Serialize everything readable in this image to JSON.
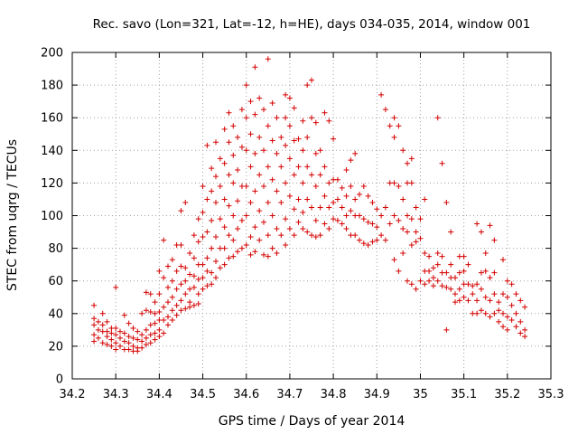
{
  "chart_data": {
    "type": "scatter",
    "title": "Rec. savo (Lon=321, Lat=-12, h=HE), days 034-035, 2014, window 001",
    "xlabel": "GPS time / Days of year 2014",
    "ylabel": "STEC from uqrg / TECUs",
    "xlim": [
      34.2,
      35.3
    ],
    "ylim": [
      0,
      200
    ],
    "xticks": [
      "34.2",
      "34.3",
      "34.4",
      "34.5",
      "34.6",
      "34.7",
      "34.8",
      "34.9",
      "35",
      "35.1",
      "35.2",
      "35.3"
    ],
    "yticks": [
      "0",
      "20",
      "40",
      "60",
      "80",
      "100",
      "120",
      "140",
      "160",
      "180",
      "200"
    ],
    "grid": true,
    "marker": "+",
    "color": "#d40000",
    "points": [
      [
        34.25,
        45
      ],
      [
        34.25,
        37
      ],
      [
        34.25,
        33
      ],
      [
        34.25,
        27
      ],
      [
        34.25,
        23
      ],
      [
        34.26,
        35
      ],
      [
        34.26,
        30
      ],
      [
        34.26,
        25
      ],
      [
        34.27,
        40
      ],
      [
        34.27,
        33
      ],
      [
        34.27,
        29
      ],
      [
        34.27,
        22
      ],
      [
        34.28,
        35
      ],
      [
        34.28,
        29
      ],
      [
        34.28,
        26
      ],
      [
        34.28,
        21
      ],
      [
        34.29,
        31
      ],
      [
        34.29,
        28
      ],
      [
        34.29,
        24
      ],
      [
        34.29,
        20
      ],
      [
        34.3,
        56
      ],
      [
        34.3,
        31
      ],
      [
        34.3,
        27
      ],
      [
        34.3,
        22
      ],
      [
        34.3,
        18
      ],
      [
        34.31,
        29
      ],
      [
        34.31,
        25
      ],
      [
        34.31,
        20
      ],
      [
        34.32,
        39
      ],
      [
        34.32,
        28
      ],
      [
        34.32,
        23
      ],
      [
        34.32,
        18
      ],
      [
        34.33,
        34
      ],
      [
        34.33,
        26
      ],
      [
        34.33,
        22
      ],
      [
        34.33,
        18
      ],
      [
        34.34,
        31
      ],
      [
        34.34,
        25
      ],
      [
        34.34,
        20
      ],
      [
        34.34,
        17
      ],
      [
        34.35,
        29
      ],
      [
        34.35,
        24
      ],
      [
        34.35,
        19
      ],
      [
        34.35,
        17
      ],
      [
        34.36,
        40
      ],
      [
        34.36,
        27
      ],
      [
        34.36,
        23
      ],
      [
        34.36,
        19
      ],
      [
        34.37,
        53
      ],
      [
        34.37,
        42
      ],
      [
        34.37,
        30
      ],
      [
        34.37,
        25
      ],
      [
        34.37,
        21
      ],
      [
        34.38,
        52
      ],
      [
        34.38,
        41
      ],
      [
        34.38,
        33
      ],
      [
        34.38,
        27
      ],
      [
        34.38,
        22
      ],
      [
        34.39,
        47
      ],
      [
        34.39,
        40
      ],
      [
        34.39,
        34
      ],
      [
        34.39,
        28
      ],
      [
        34.39,
        24
      ],
      [
        34.4,
        66
      ],
      [
        34.4,
        52
      ],
      [
        34.4,
        41
      ],
      [
        34.4,
        36
      ],
      [
        34.4,
        30
      ],
      [
        34.4,
        26
      ],
      [
        34.41,
        85
      ],
      [
        34.41,
        62
      ],
      [
        34.41,
        44
      ],
      [
        34.41,
        36
      ],
      [
        34.41,
        28
      ],
      [
        34.42,
        69
      ],
      [
        34.42,
        56
      ],
      [
        34.42,
        47
      ],
      [
        34.42,
        38
      ],
      [
        34.42,
        33
      ],
      [
        34.43,
        73
      ],
      [
        34.43,
        60
      ],
      [
        34.43,
        50
      ],
      [
        34.43,
        42
      ],
      [
        34.43,
        36
      ],
      [
        34.44,
        82
      ],
      [
        34.44,
        66
      ],
      [
        34.44,
        55
      ],
      [
        34.44,
        45
      ],
      [
        34.44,
        39
      ],
      [
        34.45,
        103
      ],
      [
        34.45,
        82
      ],
      [
        34.45,
        69
      ],
      [
        34.45,
        58
      ],
      [
        34.45,
        48
      ],
      [
        34.45,
        42
      ],
      [
        34.46,
        108
      ],
      [
        34.46,
        68
      ],
      [
        34.46,
        60
      ],
      [
        34.46,
        52
      ],
      [
        34.46,
        43
      ],
      [
        34.47,
        77
      ],
      [
        34.47,
        64
      ],
      [
        34.47,
        55
      ],
      [
        34.47,
        47
      ],
      [
        34.47,
        44
      ],
      [
        34.48,
        88
      ],
      [
        34.48,
        74
      ],
      [
        34.48,
        63
      ],
      [
        34.48,
        56
      ],
      [
        34.48,
        45
      ],
      [
        34.49,
        98
      ],
      [
        34.49,
        84
      ],
      [
        34.49,
        70
      ],
      [
        34.49,
        61
      ],
      [
        34.49,
        52
      ],
      [
        34.49,
        46
      ],
      [
        34.5,
        118
      ],
      [
        34.5,
        102
      ],
      [
        34.5,
        87
      ],
      [
        34.5,
        70
      ],
      [
        34.5,
        62
      ],
      [
        34.5,
        55
      ],
      [
        34.51,
        143
      ],
      [
        34.51,
        110
      ],
      [
        34.51,
        90
      ],
      [
        34.51,
        74
      ],
      [
        34.51,
        66
      ],
      [
        34.51,
        57
      ],
      [
        34.52,
        129
      ],
      [
        34.52,
        115
      ],
      [
        34.52,
        97
      ],
      [
        34.52,
        80
      ],
      [
        34.52,
        65
      ],
      [
        34.52,
        58
      ],
      [
        34.53,
        145
      ],
      [
        34.53,
        124
      ],
      [
        34.53,
        108
      ],
      [
        34.53,
        87
      ],
      [
        34.53,
        72
      ],
      [
        34.53,
        62
      ],
      [
        34.54,
        135
      ],
      [
        34.54,
        118
      ],
      [
        34.54,
        98
      ],
      [
        34.54,
        80
      ],
      [
        34.54,
        68
      ],
      [
        34.55,
        153
      ],
      [
        34.55,
        132
      ],
      [
        34.55,
        110
      ],
      [
        34.55,
        93
      ],
      [
        34.55,
        80
      ],
      [
        34.55,
        70
      ],
      [
        34.56,
        163
      ],
      [
        34.56,
        145
      ],
      [
        34.56,
        125
      ],
      [
        34.56,
        106
      ],
      [
        34.56,
        88
      ],
      [
        34.56,
        74
      ],
      [
        34.57,
        155
      ],
      [
        34.57,
        137
      ],
      [
        34.57,
        120
      ],
      [
        34.57,
        100
      ],
      [
        34.57,
        85
      ],
      [
        34.57,
        75
      ],
      [
        34.58,
        148
      ],
      [
        34.58,
        128
      ],
      [
        34.58,
        109
      ],
      [
        34.58,
        92
      ],
      [
        34.58,
        78
      ],
      [
        34.59,
        165
      ],
      [
        34.59,
        142
      ],
      [
        34.59,
        118
      ],
      [
        34.59,
        97
      ],
      [
        34.59,
        80
      ],
      [
        34.6,
        180
      ],
      [
        34.6,
        160
      ],
      [
        34.6,
        140
      ],
      [
        34.6,
        118
      ],
      [
        34.6,
        100
      ],
      [
        34.6,
        82
      ],
      [
        34.61,
        170
      ],
      [
        34.61,
        150
      ],
      [
        34.61,
        130
      ],
      [
        34.61,
        108
      ],
      [
        34.61,
        87
      ],
      [
        34.61,
        76
      ],
      [
        34.62,
        191
      ],
      [
        34.62,
        162
      ],
      [
        34.62,
        138
      ],
      [
        34.62,
        115
      ],
      [
        34.62,
        93
      ],
      [
        34.62,
        78
      ],
      [
        34.63,
        172
      ],
      [
        34.63,
        148
      ],
      [
        34.63,
        125
      ],
      [
        34.63,
        103
      ],
      [
        34.63,
        85
      ],
      [
        34.64,
        165
      ],
      [
        34.64,
        140
      ],
      [
        34.64,
        118
      ],
      [
        34.64,
        96
      ],
      [
        34.64,
        76
      ],
      [
        34.65,
        196
      ],
      [
        34.65,
        155
      ],
      [
        34.65,
        130
      ],
      [
        34.65,
        108
      ],
      [
        34.65,
        88
      ],
      [
        34.65,
        75
      ],
      [
        34.66,
        169
      ],
      [
        34.66,
        146
      ],
      [
        34.66,
        122
      ],
      [
        34.66,
        100
      ],
      [
        34.66,
        80
      ],
      [
        34.67,
        160
      ],
      [
        34.67,
        138
      ],
      [
        34.67,
        115
      ],
      [
        34.67,
        92
      ],
      [
        34.67,
        77
      ],
      [
        34.68,
        148
      ],
      [
        34.68,
        130
      ],
      [
        34.68,
        108
      ],
      [
        34.68,
        88
      ],
      [
        34.69,
        174
      ],
      [
        34.69,
        160
      ],
      [
        34.69,
        143
      ],
      [
        34.69,
        120
      ],
      [
        34.69,
        98
      ],
      [
        34.69,
        82
      ],
      [
        34.7,
        172
      ],
      [
        34.7,
        155
      ],
      [
        34.7,
        135
      ],
      [
        34.7,
        112
      ],
      [
        34.7,
        92
      ],
      [
        34.71,
        166
      ],
      [
        34.71,
        146
      ],
      [
        34.71,
        125
      ],
      [
        34.71,
        104
      ],
      [
        34.71,
        88
      ],
      [
        34.72,
        147
      ],
      [
        34.72,
        130
      ],
      [
        34.72,
        110
      ],
      [
        34.72,
        96
      ],
      [
        34.73,
        158
      ],
      [
        34.73,
        140
      ],
      [
        34.73,
        120
      ],
      [
        34.73,
        102
      ],
      [
        34.73,
        92
      ],
      [
        34.74,
        180
      ],
      [
        34.74,
        148
      ],
      [
        34.74,
        130
      ],
      [
        34.74,
        110
      ],
      [
        34.74,
        90
      ],
      [
        34.75,
        183
      ],
      [
        34.75,
        160
      ],
      [
        34.75,
        125
      ],
      [
        34.75,
        105
      ],
      [
        34.75,
        88
      ],
      [
        34.76,
        157
      ],
      [
        34.76,
        138
      ],
      [
        34.76,
        118
      ],
      [
        34.76,
        97
      ],
      [
        34.76,
        87
      ],
      [
        34.77,
        140
      ],
      [
        34.77,
        125
      ],
      [
        34.77,
        105
      ],
      [
        34.77,
        88
      ],
      [
        34.78,
        163
      ],
      [
        34.78,
        130
      ],
      [
        34.78,
        112
      ],
      [
        34.78,
        95
      ],
      [
        34.79,
        158
      ],
      [
        34.79,
        120
      ],
      [
        34.79,
        105
      ],
      [
        34.79,
        92
      ],
      [
        34.8,
        147
      ],
      [
        34.8,
        122
      ],
      [
        34.8,
        108
      ],
      [
        34.8,
        98
      ],
      [
        34.81,
        122
      ],
      [
        34.81,
        110
      ],
      [
        34.81,
        97
      ],
      [
        34.82,
        117
      ],
      [
        34.82,
        105
      ],
      [
        34.82,
        95
      ],
      [
        34.83,
        128
      ],
      [
        34.83,
        112
      ],
      [
        34.83,
        100
      ],
      [
        34.83,
        92
      ],
      [
        34.84,
        134
      ],
      [
        34.84,
        118
      ],
      [
        34.84,
        103
      ],
      [
        34.84,
        88
      ],
      [
        34.85,
        138
      ],
      [
        34.85,
        110
      ],
      [
        34.85,
        100
      ],
      [
        34.85,
        88
      ],
      [
        34.86,
        113
      ],
      [
        34.86,
        100
      ],
      [
        34.86,
        85
      ],
      [
        34.87,
        118
      ],
      [
        34.87,
        98
      ],
      [
        34.87,
        83
      ],
      [
        34.88,
        112
      ],
      [
        34.88,
        96
      ],
      [
        34.88,
        82
      ],
      [
        34.89,
        108
      ],
      [
        34.89,
        95
      ],
      [
        34.89,
        84
      ],
      [
        34.9,
        104
      ],
      [
        34.9,
        93
      ],
      [
        34.9,
        85
      ],
      [
        34.91,
        174
      ],
      [
        34.91,
        100
      ],
      [
        34.91,
        88
      ],
      [
        34.92,
        165
      ],
      [
        34.92,
        105
      ],
      [
        34.92,
        85
      ],
      [
        34.93,
        155
      ],
      [
        34.93,
        120
      ],
      [
        34.93,
        95
      ],
      [
        34.94,
        160
      ],
      [
        34.94,
        148
      ],
      [
        34.94,
        120
      ],
      [
        34.94,
        100
      ],
      [
        34.94,
        73
      ],
      [
        34.95,
        155
      ],
      [
        34.95,
        118
      ],
      [
        34.95,
        97
      ],
      [
        34.95,
        66
      ],
      [
        34.96,
        140
      ],
      [
        34.96,
        110
      ],
      [
        34.96,
        92
      ],
      [
        34.96,
        77
      ],
      [
        34.97,
        132
      ],
      [
        34.97,
        120
      ],
      [
        34.97,
        100
      ],
      [
        34.97,
        90
      ],
      [
        34.97,
        60
      ],
      [
        34.98,
        135
      ],
      [
        34.98,
        120
      ],
      [
        34.98,
        98
      ],
      [
        34.98,
        82
      ],
      [
        34.98,
        58
      ],
      [
        34.99,
        105
      ],
      [
        34.99,
        90
      ],
      [
        34.99,
        84
      ],
      [
        34.99,
        55
      ],
      [
        35,
        98
      ],
      [
        35,
        86
      ],
      [
        35,
        60
      ],
      [
        35.01,
        110
      ],
      [
        35.01,
        77
      ],
      [
        35.01,
        66
      ],
      [
        35.01,
        58
      ],
      [
        35.02,
        75
      ],
      [
        35.02,
        66
      ],
      [
        35.02,
        60
      ],
      [
        35.03,
        68
      ],
      [
        35.03,
        62
      ],
      [
        35.03,
        57
      ],
      [
        35.04,
        160
      ],
      [
        35.04,
        77
      ],
      [
        35.04,
        70
      ],
      [
        35.04,
        60
      ],
      [
        35.05,
        132
      ],
      [
        35.05,
        75
      ],
      [
        35.05,
        65
      ],
      [
        35.05,
        57
      ],
      [
        35.06,
        108
      ],
      [
        35.06,
        65
      ],
      [
        35.06,
        56
      ],
      [
        35.06,
        30
      ],
      [
        35.07,
        90
      ],
      [
        35.07,
        70
      ],
      [
        35.07,
        62
      ],
      [
        35.07,
        55
      ],
      [
        35.08,
        62
      ],
      [
        35.08,
        52
      ],
      [
        35.08,
        47
      ],
      [
        35.09,
        75
      ],
      [
        35.09,
        65
      ],
      [
        35.09,
        55
      ],
      [
        35.09,
        48
      ],
      [
        35.1,
        75
      ],
      [
        35.1,
        66
      ],
      [
        35.1,
        58
      ],
      [
        35.1,
        50
      ],
      [
        35.11,
        70
      ],
      [
        35.11,
        58
      ],
      [
        35.11,
        48
      ],
      [
        35.12,
        40
      ],
      [
        35.12,
        52
      ],
      [
        35.12,
        57
      ],
      [
        35.13,
        95
      ],
      [
        35.13,
        58
      ],
      [
        35.13,
        48
      ],
      [
        35.13,
        40
      ],
      [
        35.14,
        90
      ],
      [
        35.14,
        65
      ],
      [
        35.14,
        55
      ],
      [
        35.14,
        42
      ],
      [
        35.15,
        77
      ],
      [
        35.15,
        66
      ],
      [
        35.15,
        50
      ],
      [
        35.15,
        40
      ],
      [
        35.16,
        94
      ],
      [
        35.16,
        62
      ],
      [
        35.16,
        48
      ],
      [
        35.16,
        38
      ],
      [
        35.17,
        85
      ],
      [
        35.17,
        65
      ],
      [
        35.17,
        52
      ],
      [
        35.17,
        40
      ],
      [
        35.18,
        47
      ],
      [
        35.18,
        42
      ],
      [
        35.18,
        35
      ],
      [
        35.19,
        73
      ],
      [
        35.19,
        52
      ],
      [
        35.19,
        40
      ],
      [
        35.19,
        32
      ],
      [
        35.2,
        60
      ],
      [
        35.2,
        50
      ],
      [
        35.2,
        38
      ],
      [
        35.2,
        30
      ],
      [
        35.21,
        58
      ],
      [
        35.21,
        45
      ],
      [
        35.21,
        36
      ],
      [
        35.22,
        52
      ],
      [
        35.22,
        40
      ],
      [
        35.22,
        32
      ],
      [
        35.23,
        48
      ],
      [
        35.23,
        35
      ],
      [
        35.23,
        28
      ],
      [
        35.24,
        44
      ],
      [
        35.24,
        30
      ],
      [
        35.24,
        26
      ]
    ]
  }
}
